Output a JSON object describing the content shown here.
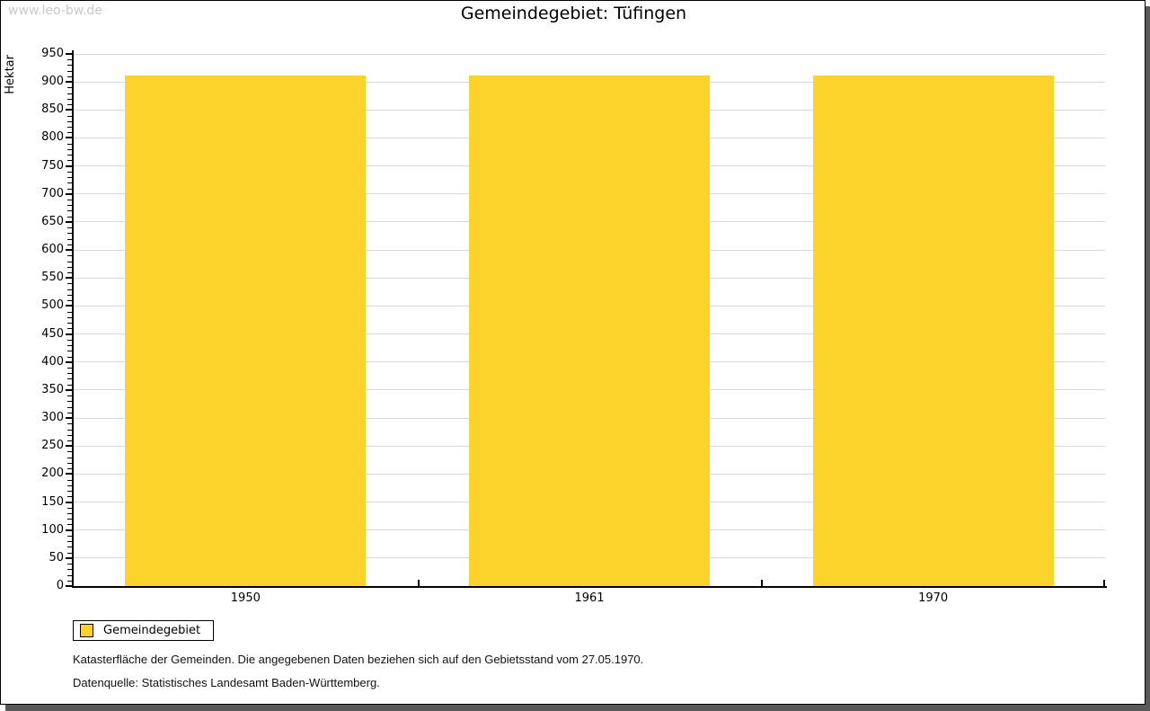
{
  "watermark": "www.leo-bw.de",
  "title": "Gemeindegebiet: Tüfingen",
  "chart_data": {
    "type": "bar",
    "title": "Gemeindegebiet: Tüfingen",
    "ylabel": "Hektar",
    "xlabel": "",
    "categories": [
      "1950",
      "1961",
      "1970"
    ],
    "series": [
      {
        "name": "Gemeindegebiet",
        "values": [
          911,
          911,
          911
        ]
      }
    ],
    "ylim": [
      0,
      950
    ],
    "ytick_interval": 50,
    "ytick_minor_interval": 10,
    "grid": "horizontal-major",
    "legend_position": "bottom-left-below-chart",
    "bar_width_fraction": 0.7
  },
  "legend": {
    "label": "Gemeindegebiet"
  },
  "notes": [
    "Katasterfläche der Gemeinden. Die angegebenen Daten beziehen sich auf den Gebietsstand vom 27.05.1970.",
    "Datenquelle: Statistisches Landesamt Baden-Württemberg."
  ],
  "colors": {
    "bar": "#fcd32b",
    "gridline": "#d9d9d9",
    "axis": "#000000",
    "frame_shadow": "#595959",
    "watermark": "#c8c8c8",
    "background": "#ffffff"
  }
}
